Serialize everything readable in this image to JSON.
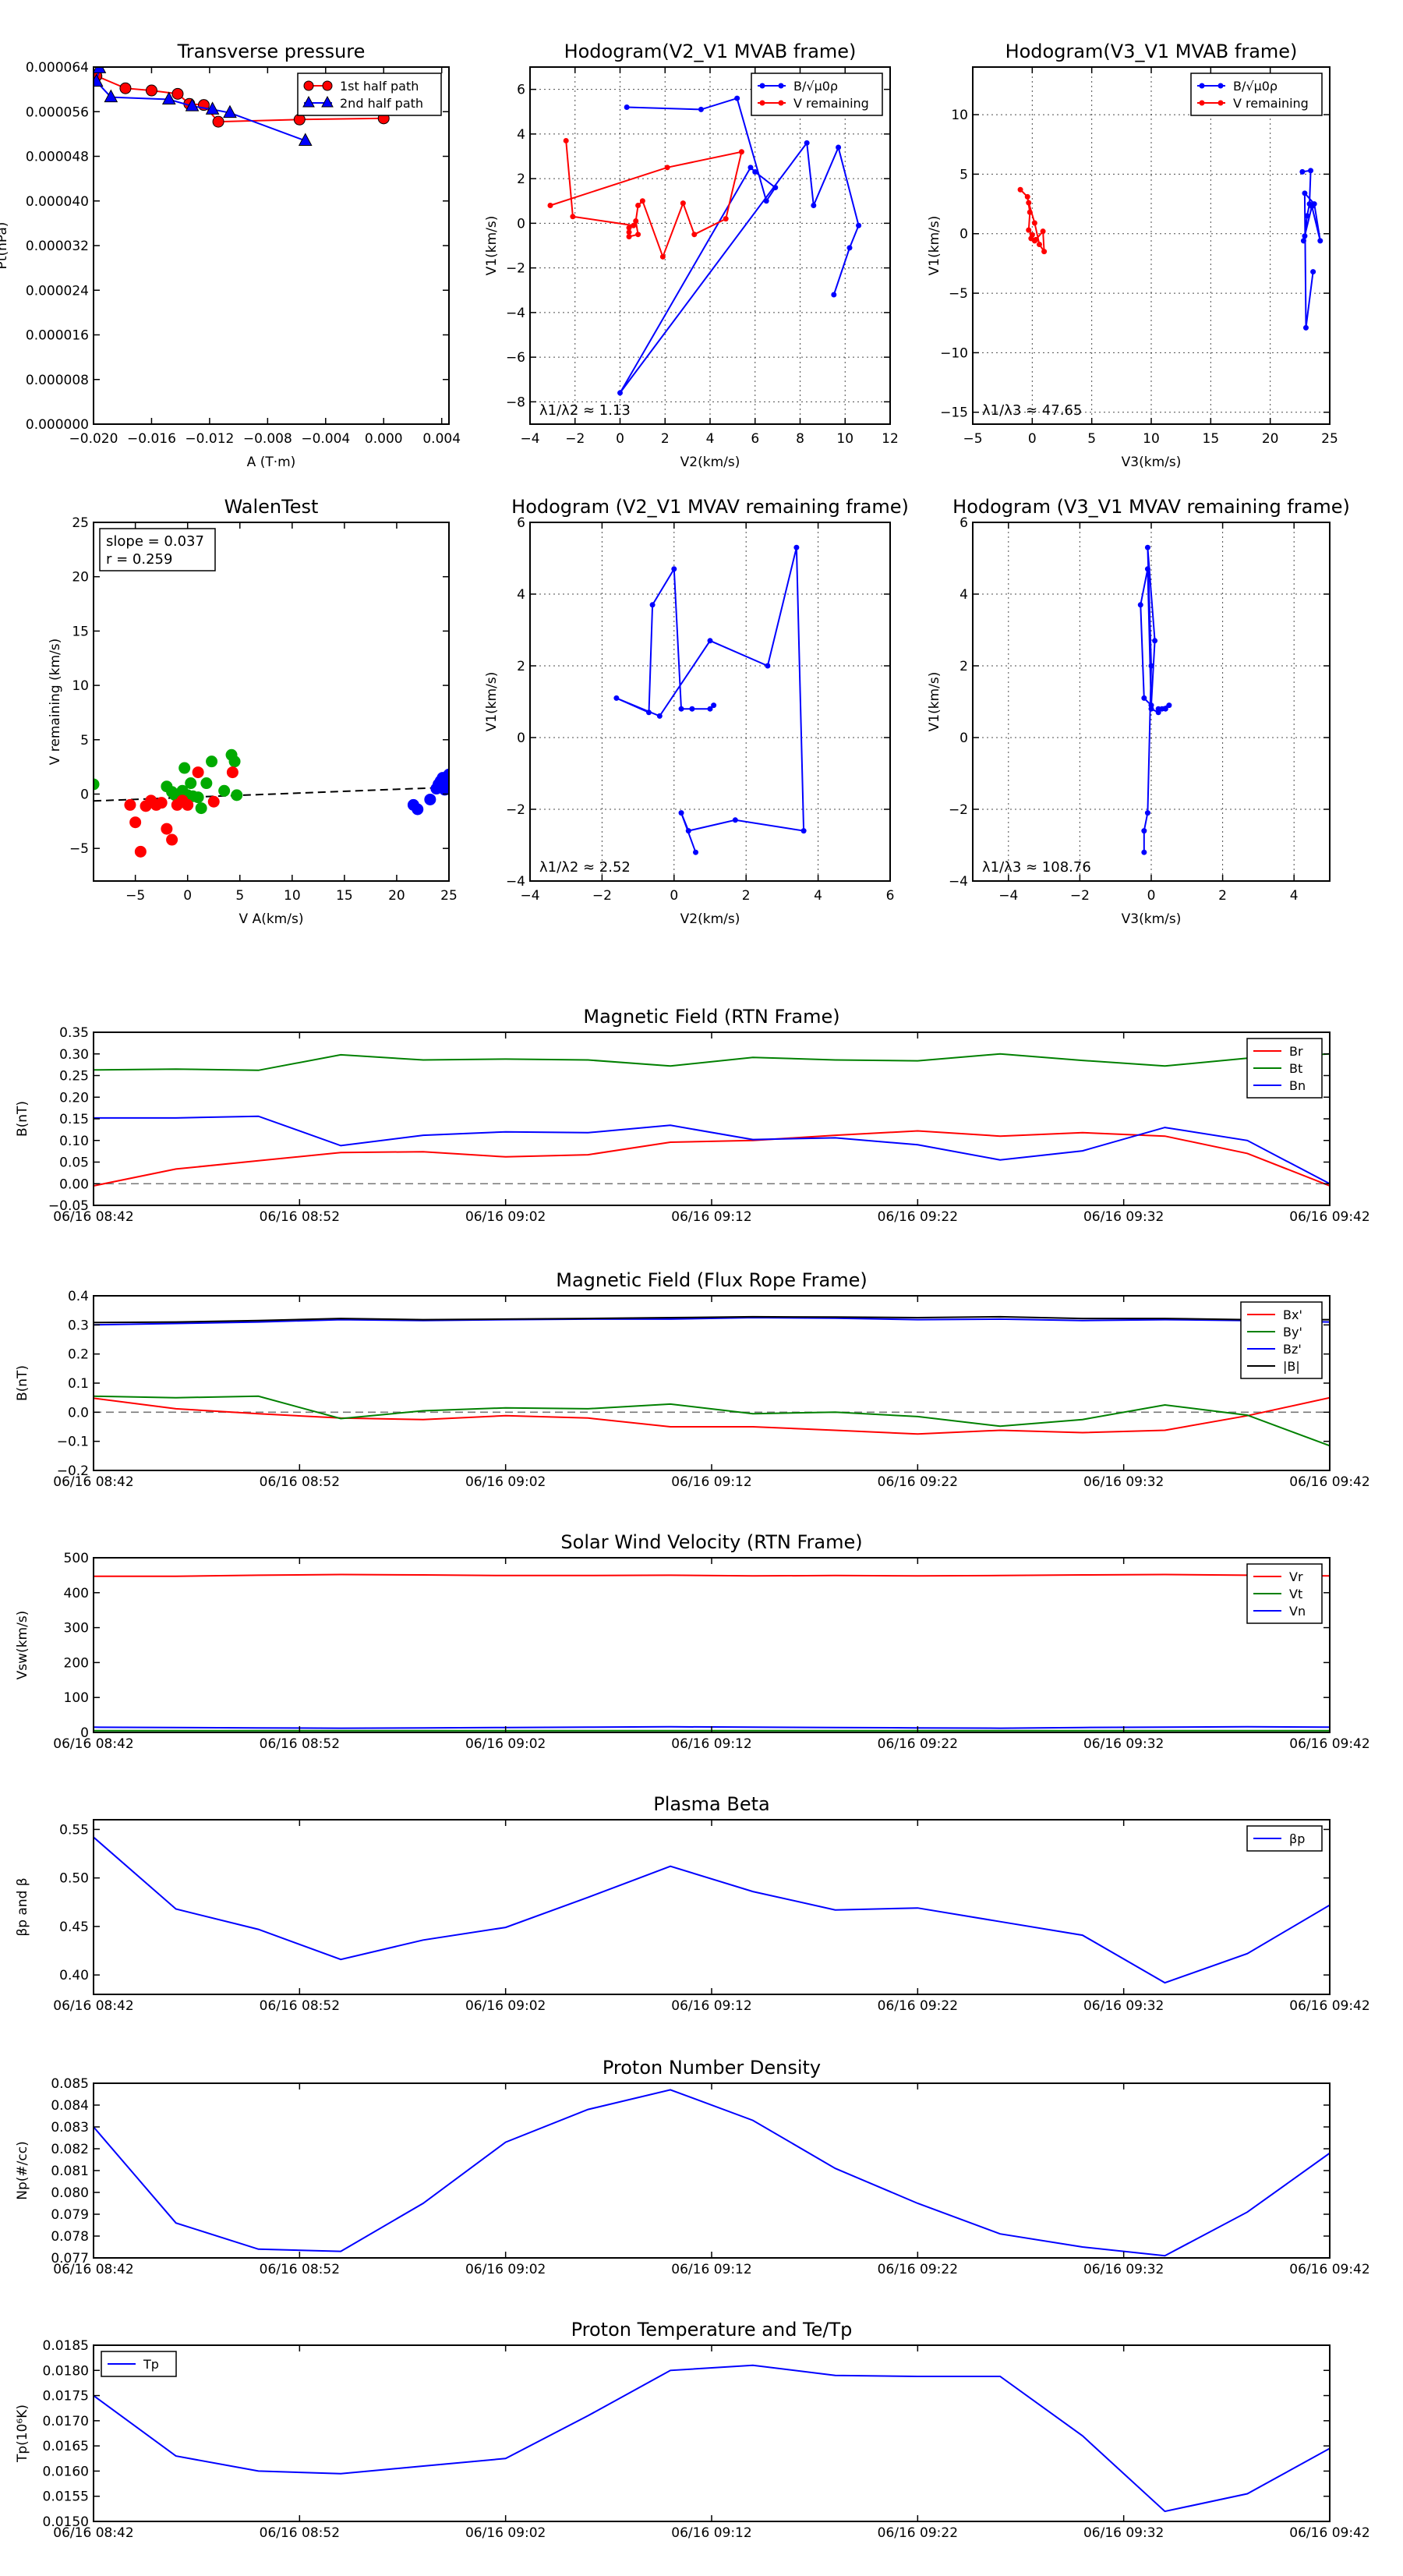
{
  "chart_data": [
    {
      "id": "transverse-pressure",
      "type": "line",
      "title": "Transverse pressure",
      "xlabel": "A (T·m)",
      "ylabel": "Pt(nPa)",
      "xlim": [
        -0.02,
        0.0045
      ],
      "ylim": [
        0,
        6.4e-05
      ],
      "xticks": [
        -0.02,
        -0.016,
        -0.012,
        -0.008,
        -0.004,
        0,
        0.004
      ],
      "xticklabels": [
        "−0.020",
        "−0.016",
        "−0.012",
        "−0.008",
        "−0.004",
        "0.000",
        "0.004"
      ],
      "yticks": [
        0,
        8e-06,
        1.6e-05,
        2.4e-05,
        3.2e-05,
        4e-05,
        4.8e-05,
        5.6e-05,
        6.4e-05
      ],
      "yticklabels": [
        "0.000000",
        "0.000008",
        "0.000016",
        "0.000024",
        "0.000032",
        "0.000040",
        "0.000048",
        "0.000056",
        "0.000064"
      ],
      "grid": false,
      "legend": "top-right",
      "series": [
        {
          "name": "1st half path",
          "color": "#ff0000",
          "marker": "circle",
          "x": [
            0.0,
            -0.0058,
            -0.0114,
            -0.0124,
            -0.0134,
            -0.0142,
            -0.016,
            -0.0178,
            -0.0198
          ],
          "y": [
            5.48e-05,
            5.46e-05,
            5.42e-05,
            5.72e-05,
            5.74e-05,
            5.92e-05,
            5.98e-05,
            6.02e-05,
            6.24e-05
          ]
        },
        {
          "name": "2nd half path",
          "color": "#0000ff",
          "marker": "triangle",
          "x": [
            -0.0054,
            -0.0106,
            -0.0118,
            -0.0132,
            -0.0148,
            -0.0188,
            -0.0198,
            -0.0196
          ],
          "y": [
            5.08e-05,
            5.58e-05,
            5.64e-05,
            5.7e-05,
            5.82e-05,
            5.86e-05,
            6.14e-05,
            6.38e-05
          ]
        }
      ]
    },
    {
      "id": "hodogram-v2-v1-mvab",
      "type": "line",
      "title": "Hodogram(V2_V1 MVAB frame)",
      "xlabel": "V2(km/s)",
      "ylabel": "V1(km/s)",
      "xlim": [
        -4,
        12
      ],
      "ylim": [
        -9,
        7
      ],
      "xticks": [
        -4,
        -2,
        0,
        2,
        4,
        6,
        8,
        10,
        12
      ],
      "yticks": [
        -8,
        -6,
        -4,
        -2,
        0,
        2,
        4,
        6
      ],
      "grid": true,
      "legend": "top-right",
      "annotation": "λ1/λ2 ≈ 1.13",
      "series": [
        {
          "name": "B/√μ0ρ",
          "color": "#0000ff",
          "marker": "dot",
          "x": [
            0.3,
            3.6,
            5.2,
            6.5,
            6.9,
            6.0,
            5.8,
            0.0,
            8.3,
            8.6,
            9.7,
            10.6,
            10.2,
            9.5
          ],
          "y": [
            5.2,
            5.1,
            5.6,
            1.0,
            1.6,
            2.3,
            2.5,
            -7.6,
            3.6,
            0.8,
            3.4,
            -0.1,
            -1.1,
            -3.2
          ]
        },
        {
          "name": "V remaining",
          "color": "#ff0000",
          "marker": "dot",
          "x": [
            -2.4,
            -2.1,
            0.6,
            0.4,
            0.4,
            0.4,
            0.8,
            0.7,
            0.8,
            1.0,
            1.9,
            2.8,
            3.3,
            4.7,
            5.4,
            2.1,
            -3.1
          ],
          "y": [
            3.7,
            0.3,
            -0.1,
            -0.2,
            -0.4,
            -0.6,
            -0.5,
            0.1,
            0.8,
            1.0,
            -1.5,
            0.9,
            -0.5,
            0.2,
            3.2,
            2.5,
            0.8
          ]
        }
      ]
    },
    {
      "id": "hodogram-v3-v1-mvab",
      "type": "line",
      "title": "Hodogram(V3_V1 MVAB frame)",
      "xlabel": "V3(km/s)",
      "ylabel": "V1(km/s)",
      "xlim": [
        -5,
        25
      ],
      "ylim": [
        -16,
        14
      ],
      "xticks": [
        -5,
        0,
        5,
        10,
        15,
        20,
        25
      ],
      "yticks": [
        -15,
        -10,
        -5,
        0,
        5,
        10
      ],
      "grid": true,
      "legend": "top-right",
      "annotation": "λ1/λ3 ≈ 47.65",
      "series": [
        {
          "name": "B/√μ0ρ",
          "color": "#0000ff",
          "marker": "dot",
          "x": [
            22.7,
            23.4,
            23.3,
            23.1,
            22.9,
            22.8,
            23.5,
            24.2,
            23.7,
            22.9,
            23.0,
            23.6
          ],
          "y": [
            5.2,
            5.3,
            2.5,
            1.5,
            -0.2,
            -0.6,
            2.3,
            -0.6,
            2.5,
            3.4,
            -7.9,
            -3.2
          ]
        },
        {
          "name": "V remaining",
          "color": "#ff0000",
          "marker": "dot",
          "x": [
            -1.0,
            -0.4,
            -0.2,
            -0.3,
            0.0,
            -0.1,
            0.2,
            0.3,
            0.9,
            1.0,
            0.6,
            0.2,
            -0.3
          ],
          "y": [
            3.7,
            3.1,
            1.8,
            0.3,
            -0.1,
            -0.4,
            -0.6,
            -0.5,
            0.2,
            -1.5,
            -0.9,
            0.9,
            2.6
          ]
        }
      ]
    },
    {
      "id": "walen-test",
      "type": "scatter",
      "title": "WalenTest",
      "xlabel": "V A(km/s)",
      "ylabel": "V remaining (km/s)",
      "xlim": [
        -9,
        25
      ],
      "ylim": [
        -8,
        25
      ],
      "xticks": [
        -5,
        0,
        5,
        10,
        15,
        20,
        25
      ],
      "yticks": [
        -5,
        0,
        5,
        10,
        15,
        20,
        25
      ],
      "grid": false,
      "annotation_lines": [
        "slope = 0.037",
        "r = 0.259"
      ],
      "fit": {
        "slope": 0.037,
        "intercept": -0.3,
        "color": "#000000",
        "style": "dashed"
      },
      "series": [
        {
          "color": "#00aa00",
          "x": [
            -9.0,
            -2.0,
            -1.5,
            -1.2,
            -0.8,
            -0.5,
            -0.3,
            0.0,
            0.3,
            0.5,
            1.0,
            1.3,
            1.8,
            2.3,
            3.5,
            4.2,
            4.5,
            4.7
          ],
          "y": [
            0.9,
            0.7,
            0.2,
            -0.1,
            -0.6,
            0.3,
            2.4,
            -0.1,
            1.0,
            -0.2,
            -0.3,
            -1.3,
            1.0,
            3.0,
            0.3,
            3.6,
            3.0,
            -0.1
          ]
        },
        {
          "color": "#ff0000",
          "x": [
            -5.5,
            -5.0,
            -4.5,
            -4.0,
            -3.5,
            -3.0,
            -2.5,
            -2.0,
            -1.5,
            -1.0,
            -0.5,
            0.0,
            1.0,
            2.5,
            4.3
          ],
          "y": [
            -1.0,
            -2.6,
            -5.3,
            -1.1,
            -0.6,
            -1.0,
            -0.8,
            -3.2,
            -4.2,
            -1.0,
            -0.6,
            -1.0,
            2.0,
            -0.7,
            2.0
          ]
        },
        {
          "color": "#0000ff",
          "x": [
            21.6,
            22.0,
            23.2,
            23.8,
            24.0,
            24.2,
            24.4,
            24.6,
            24.8,
            25.0
          ],
          "y": [
            -1.0,
            -1.4,
            -0.5,
            0.5,
            0.9,
            1.2,
            1.5,
            0.4,
            0.9,
            1.8
          ]
        }
      ]
    },
    {
      "id": "hodogram-v2-v1-mvav",
      "type": "line",
      "title": "Hodogram (V2_V1 MVAV remaining frame)",
      "xlabel": "V2(km/s)",
      "ylabel": "V1(km/s)",
      "xlim": [
        -4,
        6
      ],
      "ylim": [
        -4,
        6
      ],
      "xticks": [
        -4,
        -2,
        0,
        2,
        4,
        6
      ],
      "yticks": [
        -4,
        -2,
        0,
        2,
        4,
        6
      ],
      "grid": true,
      "annotation": "λ1/λ2 ≈ 2.52",
      "series": [
        {
          "color": "#0000ff",
          "marker": "dot",
          "x": [
            0.6,
            0.2,
            0.4,
            1.7,
            3.6,
            3.4,
            2.6,
            1.0,
            -0.4,
            -1.6,
            -0.7,
            -0.6,
            0.0,
            0.2,
            0.5,
            1.0,
            1.1
          ],
          "y": [
            -3.2,
            -2.1,
            -2.6,
            -2.3,
            -2.6,
            5.3,
            2.0,
            2.7,
            0.6,
            1.1,
            0.7,
            3.7,
            4.7,
            0.8,
            0.8,
            0.8,
            0.9
          ]
        }
      ]
    },
    {
      "id": "hodogram-v3-v1-mvav",
      "type": "line",
      "title": "Hodogram (V3_V1 MVAV remaining frame)",
      "xlabel": "V3(km/s)",
      "ylabel": "V1(km/s)",
      "xlim": [
        -5,
        5
      ],
      "ylim": [
        -4,
        6
      ],
      "xticks": [
        -4,
        -2,
        0,
        2,
        4
      ],
      "yticks": [
        -4,
        -2,
        0,
        2,
        4,
        6
      ],
      "grid": true,
      "annotation": "λ1/λ3 ≈ 108.76",
      "series": [
        {
          "color": "#0000ff",
          "marker": "dot",
          "x": [
            -0.2,
            -0.2,
            -0.1,
            0.0,
            -0.1,
            0.1,
            0.0,
            -0.2,
            -0.3,
            -0.1,
            0.0,
            0.2,
            0.3,
            0.4,
            0.5,
            0.2
          ],
          "y": [
            -3.2,
            -2.6,
            -2.1,
            2.0,
            5.3,
            2.7,
            0.9,
            1.1,
            3.7,
            4.7,
            0.8,
            0.7,
            0.8,
            0.8,
            0.9,
            0.8
          ]
        }
      ]
    },
    {
      "id": "magnetic-field-rtn",
      "type": "line",
      "title": "Magnetic Field (RTN Frame)",
      "ylabel": "B(nT)",
      "ylim": [
        -0.05,
        0.35
      ],
      "yticks": [
        -0.05,
        0,
        0.05,
        0.1,
        0.15,
        0.2,
        0.25,
        0.3,
        0.35
      ],
      "yticklabels": [
        "−0.05",
        "0.00",
        "0.05",
        "0.10",
        "0.15",
        "0.20",
        "0.25",
        "0.30",
        "0.35"
      ],
      "grid": false,
      "legend": "top-right",
      "zero_line": true,
      "series": [
        {
          "name": "Br",
          "color": "#ff0000",
          "values": [
            -0.005,
            0.034,
            0.053,
            0.072,
            0.074,
            0.062,
            0.067,
            0.096,
            0.1,
            0.112,
            0.122,
            0.11,
            0.118,
            0.11,
            0.07,
            -0.005
          ]
        },
        {
          "name": "Bt",
          "color": "#008000",
          "values": [
            0.263,
            0.265,
            0.262,
            0.298,
            0.286,
            0.288,
            0.286,
            0.272,
            0.292,
            0.286,
            0.284,
            0.3,
            0.285,
            0.272,
            0.29,
            0.3
          ]
        },
        {
          "name": "Bn",
          "color": "#0000ff",
          "values": [
            0.152,
            0.152,
            0.156,
            0.088,
            0.112,
            0.12,
            0.118,
            0.135,
            0.102,
            0.106,
            0.09,
            0.055,
            0.076,
            0.13,
            0.1,
            0.0
          ]
        }
      ]
    },
    {
      "id": "magnetic-field-flux-rope",
      "type": "line",
      "title": "Magnetic Field (Flux Rope Frame)",
      "ylabel": "B(nT)",
      "ylim": [
        -0.2,
        0.4
      ],
      "yticks": [
        -0.2,
        -0.1,
        0,
        0.1,
        0.2,
        0.3,
        0.4
      ],
      "yticklabels": [
        "−0.2",
        "−0.1",
        "0.0",
        "0.1",
        "0.2",
        "0.3",
        "0.4"
      ],
      "grid": false,
      "legend": "top-right",
      "zero_line": true,
      "series": [
        {
          "name": "Bx'",
          "color": "#ff0000",
          "values": [
            0.048,
            0.012,
            -0.005,
            -0.02,
            -0.025,
            -0.012,
            -0.02,
            -0.05,
            -0.05,
            -0.062,
            -0.075,
            -0.062,
            -0.07,
            -0.062,
            -0.012,
            0.05
          ]
        },
        {
          "name": "By'",
          "color": "#008000",
          "values": [
            0.055,
            0.05,
            0.055,
            -0.022,
            0.005,
            0.015,
            0.012,
            0.028,
            -0.005,
            0.0,
            -0.015,
            -0.048,
            -0.025,
            0.025,
            -0.01,
            -0.115
          ]
        },
        {
          "name": "Bz'",
          "color": "#0000ff",
          "values": [
            0.3,
            0.305,
            0.31,
            0.318,
            0.315,
            0.318,
            0.32,
            0.32,
            0.325,
            0.323,
            0.318,
            0.32,
            0.315,
            0.318,
            0.315,
            0.31
          ]
        },
        {
          "name": "|B|",
          "color": "#000000",
          "values": [
            0.308,
            0.31,
            0.315,
            0.322,
            0.318,
            0.32,
            0.322,
            0.325,
            0.328,
            0.327,
            0.325,
            0.328,
            0.322,
            0.322,
            0.318,
            0.318
          ]
        }
      ]
    },
    {
      "id": "solar-wind-velocity",
      "type": "line",
      "title": "Solar Wind Velocity (RTN Frame)",
      "ylabel": "Vsw(km/s)",
      "ylim": [
        0,
        500
      ],
      "yticks": [
        0,
        100,
        200,
        300,
        400,
        500
      ],
      "grid": false,
      "legend": "top-right",
      "series": [
        {
          "name": "Vr",
          "color": "#ff0000",
          "values": [
            447,
            447,
            450,
            452,
            451,
            449,
            449,
            450,
            448,
            449,
            448,
            449,
            451,
            452,
            450,
            448
          ]
        },
        {
          "name": "Vt",
          "color": "#008000",
          "values": [
            5,
            5,
            5,
            5,
            5,
            5,
            5,
            5,
            5,
            5,
            5,
            5,
            5,
            5,
            5,
            5
          ]
        },
        {
          "name": "Vn",
          "color": "#0000ff",
          "values": [
            15,
            14,
            13,
            12,
            13,
            14,
            15,
            16,
            15,
            14,
            13,
            12,
            14,
            15,
            16,
            15
          ]
        }
      ]
    },
    {
      "id": "plasma-beta",
      "type": "line",
      "title": "Plasma Beta",
      "ylabel": "βp and β",
      "ylim": [
        0.38,
        0.56
      ],
      "yticks": [
        0.4,
        0.45,
        0.5,
        0.55
      ],
      "yticklabels": [
        "0.40",
        "0.45",
        "0.50",
        "0.55"
      ],
      "grid": false,
      "legend": "top-right",
      "series": [
        {
          "name": "βp",
          "color": "#0000ff",
          "values": [
            0.542,
            0.468,
            0.447,
            0.416,
            0.436,
            0.449,
            0.48,
            0.512,
            0.486,
            0.467,
            0.469,
            0.455,
            0.441,
            0.392,
            0.422,
            0.472
          ]
        }
      ]
    },
    {
      "id": "proton-number-density",
      "type": "line",
      "title": "Proton Number Density",
      "ylabel": "Np(#/cc)",
      "ylim": [
        0.077,
        0.085
      ],
      "yticks": [
        0.077,
        0.078,
        0.079,
        0.08,
        0.081,
        0.082,
        0.083,
        0.084,
        0.085
      ],
      "yticklabels": [
        "0.077",
        "0.078",
        "0.079",
        "0.080",
        "0.081",
        "0.082",
        "0.083",
        "0.084",
        "0.085"
      ],
      "grid": false,
      "series": [
        {
          "color": "#0000ff",
          "values": [
            0.083,
            0.0786,
            0.0774,
            0.0773,
            0.0795,
            0.0823,
            0.0838,
            0.0847,
            0.0833,
            0.0811,
            0.0795,
            0.0781,
            0.0775,
            0.0771,
            0.0791,
            0.0818
          ]
        }
      ]
    },
    {
      "id": "proton-temperature",
      "type": "line",
      "title": "Proton Temperature and Te/Tp",
      "ylabel": "Tp(10⁶K)",
      "ylim": [
        0.015,
        0.0185
      ],
      "yticks": [
        0.015,
        0.0155,
        0.016,
        0.0165,
        0.017,
        0.0175,
        0.018,
        0.0185
      ],
      "yticklabels": [
        "0.0150",
        "0.0155",
        "0.0160",
        "0.0165",
        "0.0170",
        "0.0175",
        "0.0180",
        "0.0185"
      ],
      "grid": false,
      "legend": "top-left",
      "series": [
        {
          "name": "Tp",
          "color": "#0000ff",
          "values": [
            0.0175,
            0.0163,
            0.016,
            0.01595,
            0.0161,
            0.01625,
            0.0171,
            0.018,
            0.0181,
            0.0179,
            0.01788,
            0.01788,
            0.0167,
            0.0152,
            0.01555,
            0.01645
          ]
        }
      ]
    }
  ],
  "time_axis": {
    "labels": [
      "06/16 08:42",
      "06/16 08:52",
      "06/16 09:02",
      "06/16 09:12",
      "06/16 09:22",
      "06/16 09:32",
      "06/16 09:42"
    ]
  }
}
